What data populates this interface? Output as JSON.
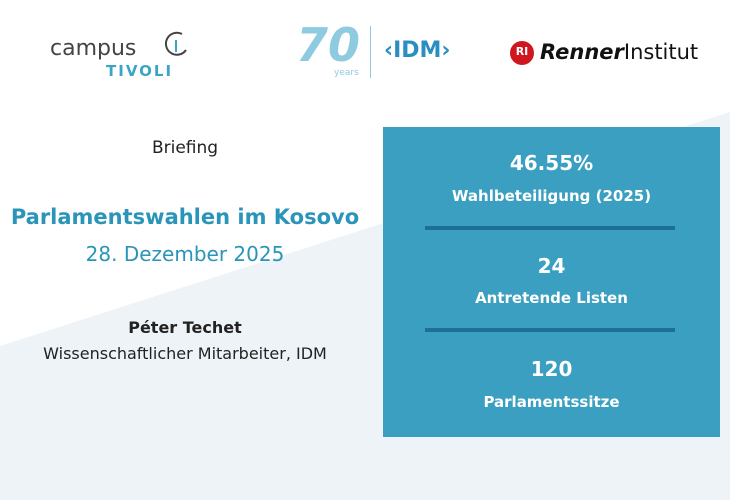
{
  "logos": {
    "campus": "campus",
    "tivoli": "TIVOLI",
    "seventy": "70",
    "years": "years",
    "idm": "‹IDM›",
    "ri": "RI",
    "renner": "Renner",
    "institut": "Institut"
  },
  "briefing": {
    "kicker": "Briefing",
    "title": "Parlamentswahlen im Kosovo",
    "date": "28. Dezember 2025",
    "author": "Péter Techet",
    "role": "Wissenschaftlicher Mitarbeiter, IDM"
  },
  "stats": [
    {
      "value": "46.55%",
      "label": "Wahlbeteiligung (2025)"
    },
    {
      "value": "24",
      "label": "Antretende Listen"
    },
    {
      "value": "120",
      "label": "Parlamentssitze"
    }
  ]
}
